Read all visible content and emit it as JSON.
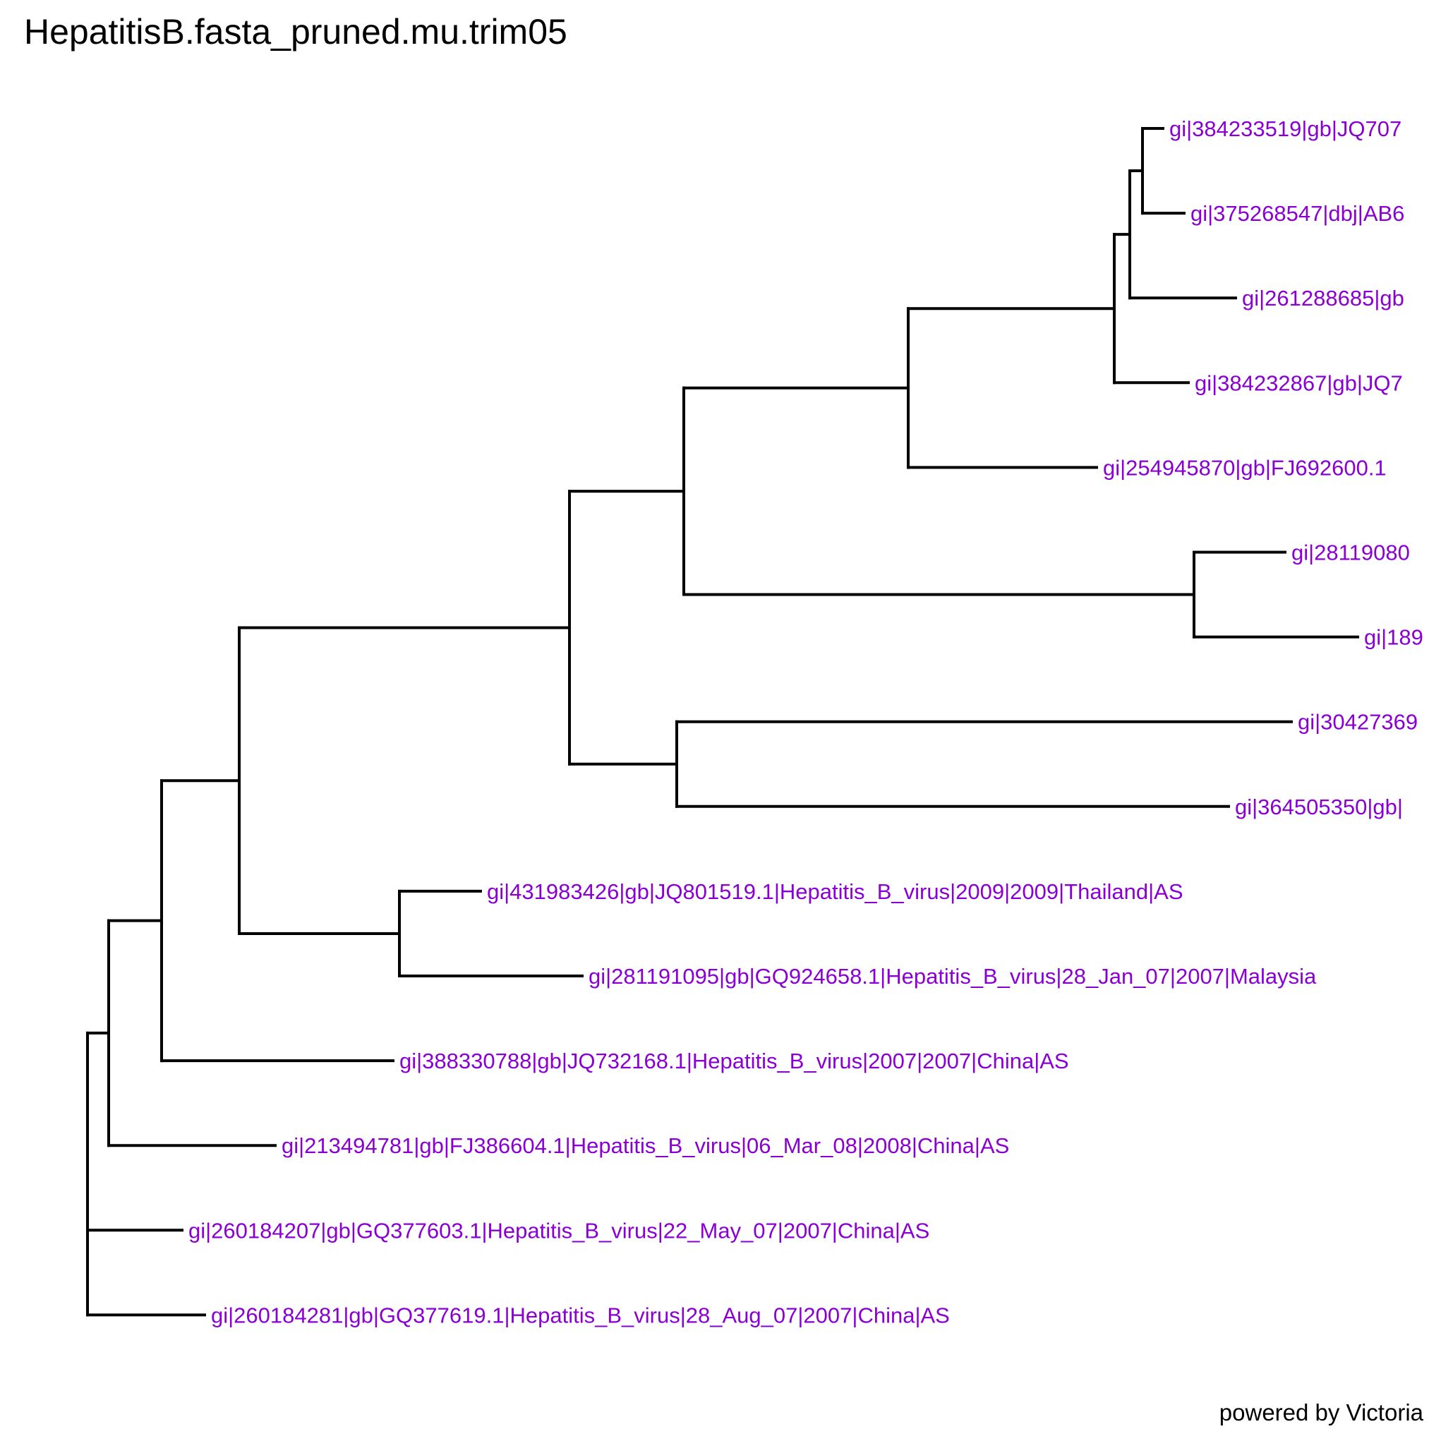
{
  "title": "HepatitisB.fasta_pruned.mu.trim05",
  "footer": "powered by Victoria",
  "colors": {
    "branch": "#000000",
    "leaf_label": "#8a00d4"
  },
  "leaves": [
    {
      "id": "L1",
      "label": "gi|384233519|gb|JQ707"
    },
    {
      "id": "L2",
      "label": "gi|375268547|dbj|AB6"
    },
    {
      "id": "L3",
      "label": "gi|261288685|gb"
    },
    {
      "id": "L4",
      "label": "gi|384232867|gb|JQ7"
    },
    {
      "id": "L5",
      "label": "gi|254945870|gb|FJ692600.1"
    },
    {
      "id": "L6",
      "label": "gi|28119080"
    },
    {
      "id": "L7",
      "label": "gi|189"
    },
    {
      "id": "L8",
      "label": "gi|30427369"
    },
    {
      "id": "L9",
      "label": "gi|364505350|gb|"
    },
    {
      "id": "L10",
      "label": "gi|431983426|gb|JQ801519.1|Hepatitis_B_virus|2009|2009|Thailand|AS"
    },
    {
      "id": "L11",
      "label": "gi|281191095|gb|GQ924658.1|Hepatitis_B_virus|28_Jan_07|2007|Malaysia"
    },
    {
      "id": "L12",
      "label": "gi|388330788|gb|JQ732168.1|Hepatitis_B_virus|2007|2007|China|AS"
    },
    {
      "id": "L13",
      "label": "gi|213494781|gb|FJ386604.1|Hepatitis_B_virus|06_Mar_08|2008|China|AS"
    },
    {
      "id": "L14",
      "label": "gi|260184207|gb|GQ377603.1|Hepatitis_B_virus|22_May_07|2007|China|AS"
    },
    {
      "id": "L15",
      "label": "gi|260184281|gb|GQ377619.1|Hepatitis_B_virus|28_Aug_07|2007|China|AS"
    }
  ]
}
